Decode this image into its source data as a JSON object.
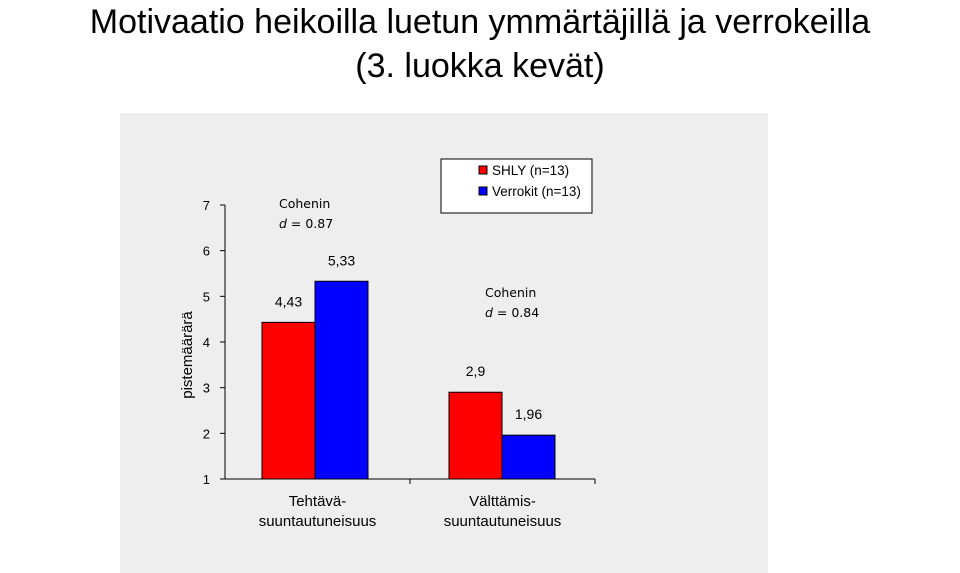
{
  "slide": {
    "title_line1": "Motivaatio heikoilla luetun ymmärtäjillä ja verrokeilla",
    "title_line2": "(3. luokka kevät)"
  },
  "chart_data": {
    "type": "bar",
    "categories": [
      "Tehtävä-\nsuuntautuneisuus",
      "Välttämis-\nsuuntautuneisuus"
    ],
    "series": [
      {
        "name": "SHLY (n=13)",
        "values": [
          4.43,
          2.9
        ],
        "labels": [
          "4,43",
          "2,9"
        ],
        "color": "#ff0000"
      },
      {
        "name": "Verrokit (n=13)",
        "values": [
          5.33,
          1.96
        ],
        "labels": [
          "5,33",
          "1,96"
        ],
        "color": "#0000ff"
      }
    ],
    "ylabel": "pistemäärärä",
    "xlabel": "",
    "ylim": [
      1,
      7
    ],
    "yticks": [
      1,
      2,
      3,
      4,
      5,
      6,
      7
    ],
    "legend_position": "top-right",
    "annotations": [
      {
        "category": 0,
        "line1": "Cohenin",
        "line2_italic": "d",
        "line2_rest": " = 0.87"
      },
      {
        "category": 1,
        "line1": "Cohenin",
        "line2_italic": "d",
        "line2_rest": " = 0.84"
      }
    ]
  }
}
